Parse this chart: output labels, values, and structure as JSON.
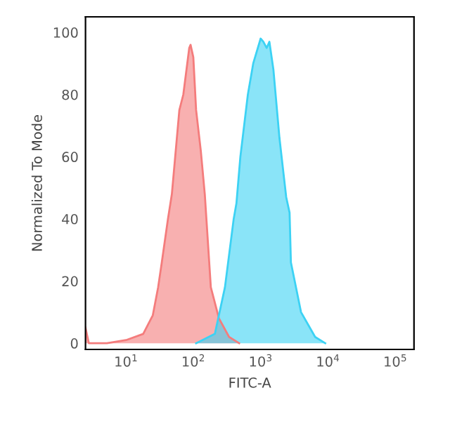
{
  "chart_data": {
    "type": "area",
    "xlabel": "FITC-A",
    "ylabel": "Normalized To Mode",
    "log": "x",
    "grid": false,
    "legend": false,
    "xlim": [
      2.5,
      190000
    ],
    "xticks": [
      {
        "value": 10,
        "label": "10$^{1}$"
      },
      {
        "value": 100,
        "label": "10$^{2}$"
      },
      {
        "value": 1000,
        "label": "10$^{3}$"
      },
      {
        "value": 10000,
        "label": "10$^{4}$"
      },
      {
        "value": 100000,
        "label": "10$^{5}$"
      }
    ],
    "ylim": [
      -2,
      105
    ],
    "yticks": [
      0,
      20,
      40,
      60,
      80,
      100
    ],
    "series": [
      {
        "color": "#f47c7c",
        "x": [
          2.5,
          2.8,
          5.2,
          10,
          18,
          25,
          30,
          34,
          42,
          48,
          62,
          71,
          87,
          91,
          100,
          110,
          129,
          148,
          182,
          240,
          340,
          480
        ],
        "values": [
          5,
          0,
          0,
          1,
          3,
          9,
          18,
          26,
          40,
          48,
          75,
          80,
          95,
          96,
          92,
          75,
          62,
          48,
          18,
          8,
          2,
          0
        ]
      },
      {
        "color": "#3cd2f4",
        "x": [
          110,
          209,
          295,
          398,
          437,
          500,
          646,
          776,
          1000,
          1096,
          1230,
          1349,
          1549,
          1905,
          2399,
          2692,
          2818,
          3981,
          6457,
          9120
        ],
        "values": [
          0,
          3,
          18,
          40,
          45,
          60,
          80,
          90,
          98,
          97,
          95,
          97,
          88,
          66,
          47,
          42,
          26,
          10,
          2,
          0
        ]
      }
    ]
  }
}
